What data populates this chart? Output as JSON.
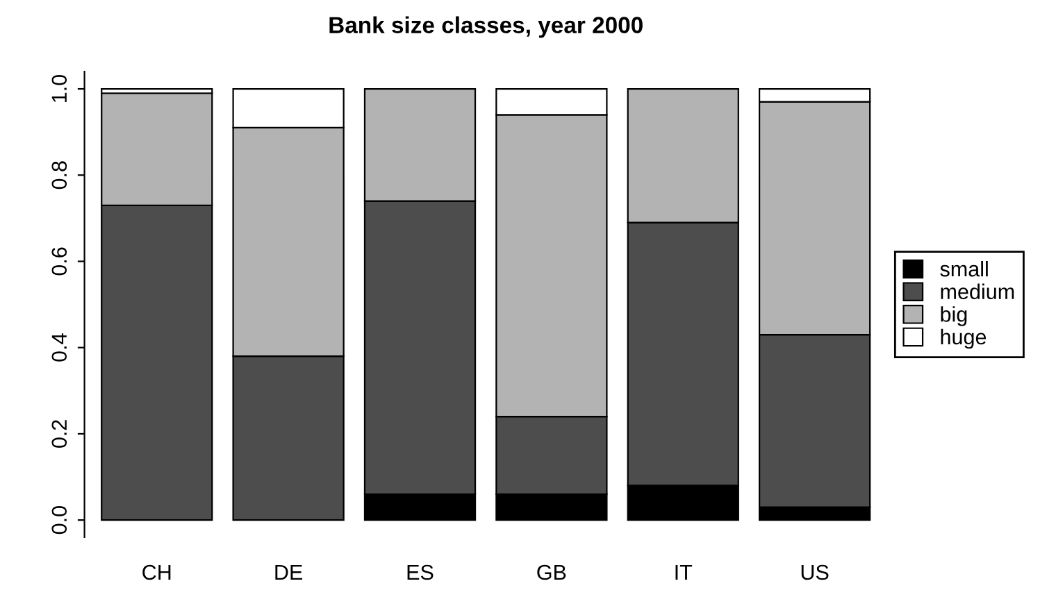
{
  "chart_data": {
    "type": "bar",
    "title": "Bank size classes, year 2000",
    "stacked": true,
    "categories": [
      "CH",
      "DE",
      "ES",
      "GB",
      "IT",
      "US"
    ],
    "series": [
      {
        "name": "small",
        "color": "#000000",
        "values": [
          0,
          0,
          0.06,
          0.06,
          0.08,
          0.03
        ]
      },
      {
        "name": "medium",
        "color": "#4d4d4d",
        "values": [
          0.73,
          0.38,
          0.68,
          0.18,
          0.61,
          0.4
        ]
      },
      {
        "name": "big",
        "color": "#b3b3b3",
        "values": [
          0.26,
          0.53,
          0.26,
          0.7,
          0.31,
          0.54
        ]
      },
      {
        "name": "huge",
        "color": "#ffffff",
        "values": [
          0.01,
          0.09,
          0,
          0.06,
          0,
          0.03
        ]
      }
    ],
    "ylim": [
      -0.04,
      1.04
    ],
    "yticks": [
      {
        "value": 0,
        "label": "0.0"
      },
      0.2,
      0.4,
      0.6,
      0.8,
      {
        "value": 1,
        "label": "1.0"
      }
    ],
    "grid": false,
    "legend": "right"
  }
}
